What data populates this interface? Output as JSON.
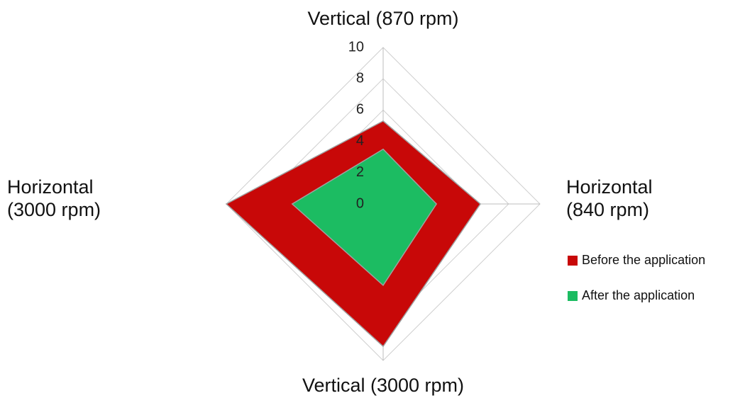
{
  "chart_data": {
    "type": "radar",
    "categories": [
      "Vertical (870 rpm)",
      "Horizontal (840 rpm)",
      "Vertical (3000 rpm)",
      "Horizontal (3000 rpm)"
    ],
    "series": [
      {
        "name": "Before the application",
        "color": "#c80808",
        "values": [
          5.3,
          6.2,
          9.1,
          10
        ]
      },
      {
        "name": "After the application",
        "color": "#1cbc62",
        "values": [
          3.5,
          3.4,
          5.2,
          5.8
        ]
      }
    ],
    "ylim": [
      0,
      10
    ],
    "yticks": [
      0,
      2,
      4,
      6,
      8,
      10
    ],
    "grid": true,
    "legend": "right"
  }
}
